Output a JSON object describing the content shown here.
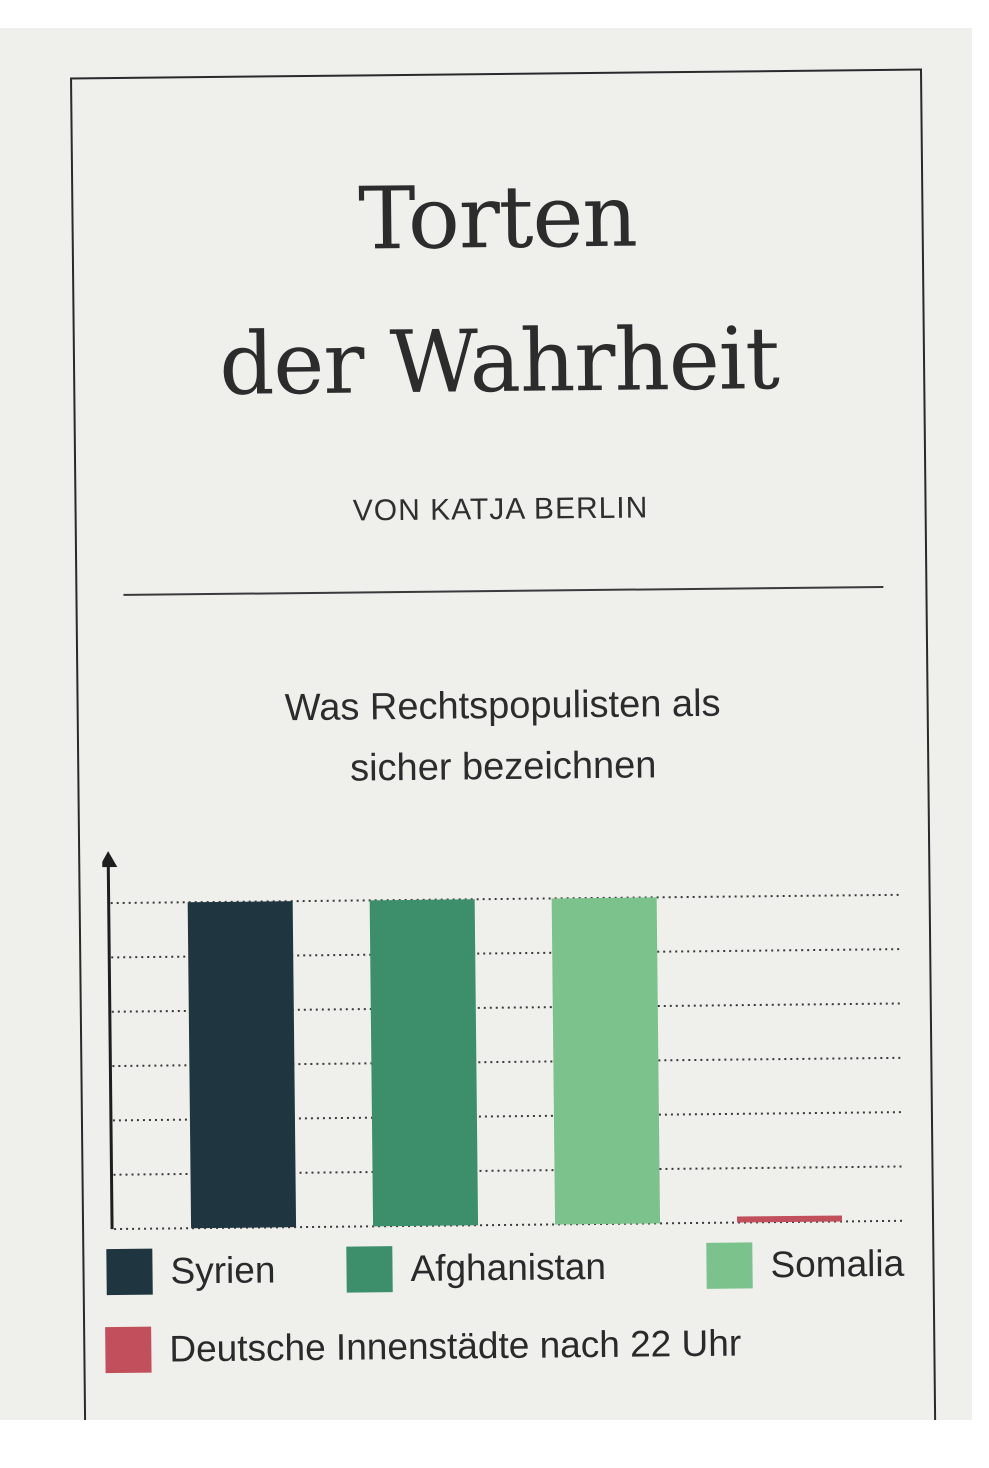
{
  "header": {
    "title_line1": "Torten",
    "title_line2": "der Wahrheit",
    "byline": "VON KATJA BERLIN"
  },
  "chart_data": {
    "type": "bar",
    "title_lines": [
      "Was Rechtspopulisten als",
      "sicher bezeichnen"
    ],
    "categories": [
      "Syrien",
      "Afghanistan",
      "Somalia",
      "Deutsche Innenstädte nach 22 Uhr"
    ],
    "values": [
      100,
      100,
      100,
      2
    ],
    "colors": [
      "#1f3540",
      "#3d8f6c",
      "#7bc28c",
      "#c2505c"
    ],
    "ylim": [
      0,
      100
    ],
    "grid": "dotted horizontal lines",
    "legend_position": "bottom"
  }
}
